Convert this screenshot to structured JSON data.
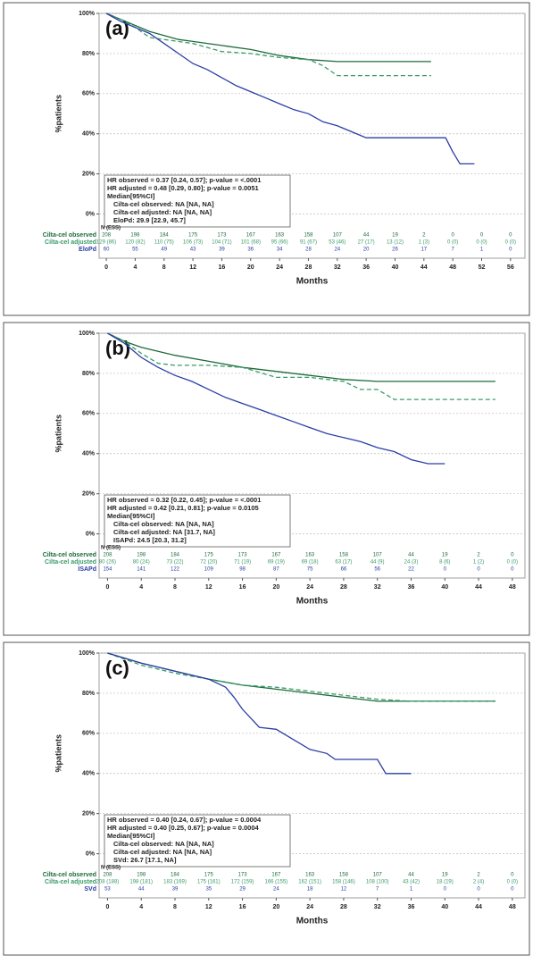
{
  "chart_data": [
    {
      "type": "line",
      "panel_label": "(a)",
      "ylabel": "%patients",
      "xlabel": "Months",
      "grid": true,
      "xlim": [
        -1,
        58
      ],
      "xticks": [
        0,
        4,
        8,
        12,
        16,
        20,
        24,
        28,
        32,
        36,
        40,
        44,
        48,
        52,
        56
      ],
      "ylim": [
        -22,
        100
      ],
      "yticks": [
        {
          "value": 100,
          "label": "100%"
        },
        {
          "value": 80,
          "label": "80%"
        },
        {
          "value": 60,
          "label": "60%"
        },
        {
          "value": 40,
          "label": "40%"
        },
        {
          "value": 20,
          "label": "20%"
        },
        {
          "value": 0,
          "label": "0%"
        }
      ],
      "series": [
        {
          "name": "Cilta-cel observed",
          "color": "#1e6b3a",
          "line_style": "solid",
          "x": [
            0,
            2,
            4,
            6,
            8,
            10,
            12,
            16,
            20,
            24,
            28,
            32,
            36,
            40,
            44,
            45
          ],
          "values": [
            100,
            97,
            94,
            91,
            89,
            87,
            86,
            84,
            82,
            79,
            77,
            76,
            76,
            76,
            76,
            76
          ]
        },
        {
          "name": "Cilta-cel adjusted",
          "color": "#3a9b6a",
          "line_style": "dashed",
          "x": [
            0,
            2,
            4,
            6,
            8,
            12,
            16,
            20,
            24,
            28,
            30,
            32,
            36,
            40,
            44,
            45
          ],
          "values": [
            100,
            97,
            93,
            88,
            87,
            85,
            81,
            80,
            78,
            77,
            74,
            69,
            69,
            69,
            69,
            69
          ]
        },
        {
          "name": "EloPd",
          "color": "#2a3ea5",
          "line_style": "solid",
          "x": [
            0,
            2,
            4,
            6,
            8,
            10,
            12,
            14,
            16,
            18,
            20,
            22,
            24,
            26,
            28,
            30,
            32,
            34,
            36,
            40,
            44,
            47,
            48,
            49,
            51
          ],
          "values": [
            100,
            96,
            93,
            90,
            85,
            80,
            75,
            72,
            68,
            64,
            61,
            58,
            55,
            52,
            50,
            46,
            44,
            41,
            38,
            38,
            38,
            38,
            31,
            25,
            25
          ]
        }
      ],
      "annotation": [
        "HR observed = 0.37 [0.24, 0.57]; p-value = <.0001",
        "HR adjusted = 0.48 [0.29, 0.80]; p-value = 0.0051",
        "Median[95%CI]",
        "Cilta-cel observed: NA [NA, NA]",
        "Cilta-cel adjusted: NA [NA, NA]",
        "EloPd: 29.9 [22.9, 45.7]"
      ],
      "risk_table": {
        "title": "N (ESS)",
        "rows": [
          {
            "name": "Cilta-cel observed",
            "values": [
              208,
              198,
              184,
              175,
              173,
              167,
              163,
              158,
              107,
              44,
              19,
              2,
              0,
              0,
              0
            ]
          },
          {
            "name": "Cilta-cel adjusted",
            "values": [
              "129 (86)",
              "120 (82)",
              "110 (75)",
              "106 (73)",
              "104 (71)",
              "101 (68)",
              "95 (66)",
              "91 (67)",
              "53 (46)",
              "27 (17)",
              "13 (12)",
              "1 (3)",
              "0 (0)",
              "0 (0)",
              "0 (0)"
            ]
          },
          {
            "name": "EloPd",
            "values": [
              60,
              55,
              49,
              43,
              39,
              36,
              34,
              28,
              24,
              20,
              26,
              17,
              7,
              1,
              0
            ]
          }
        ]
      }
    },
    {
      "type": "line",
      "panel_label": "(b)",
      "ylabel": "%patients",
      "xlabel": "Months",
      "grid": true,
      "xlim": [
        -1,
        49.5
      ],
      "xticks": [
        0,
        4,
        8,
        12,
        16,
        20,
        24,
        28,
        32,
        36,
        40,
        44,
        48
      ],
      "ylim": [
        -22,
        100
      ],
      "yticks": [
        {
          "value": 100,
          "label": "100%"
        },
        {
          "value": 80,
          "label": "80%"
        },
        {
          "value": 60,
          "label": "60%"
        },
        {
          "value": 40,
          "label": "40%"
        },
        {
          "value": 20,
          "label": "20%"
        },
        {
          "value": 0,
          "label": "0%"
        }
      ],
      "series": [
        {
          "name": "Cilta-cel observed",
          "color": "#1e6b3a",
          "line_style": "solid",
          "x": [
            0,
            2,
            4,
            8,
            12,
            16,
            20,
            24,
            28,
            32,
            36,
            40,
            44,
            46
          ],
          "values": [
            100,
            96,
            93,
            89,
            86,
            83,
            81,
            79,
            77,
            76,
            76,
            76,
            76,
            76
          ]
        },
        {
          "name": "Cilta-cel adjusted",
          "color": "#3a9b6a",
          "line_style": "dashed",
          "x": [
            0,
            2,
            4,
            6,
            8,
            12,
            16,
            20,
            24,
            28,
            30,
            32,
            34,
            40,
            44,
            46
          ],
          "values": [
            100,
            96,
            90,
            85,
            84,
            84,
            83,
            78,
            78,
            76,
            72,
            72,
            67,
            67,
            67,
            67
          ]
        },
        {
          "name": "ISAPd",
          "color": "#2a3ea5",
          "line_style": "solid",
          "x": [
            0,
            2,
            4,
            6,
            8,
            10,
            12,
            14,
            16,
            18,
            20,
            22,
            24,
            26,
            28,
            30,
            32,
            34,
            36,
            38,
            40
          ],
          "values": [
            100,
            95,
            88,
            83,
            79,
            76,
            72,
            68,
            65,
            62,
            59,
            56,
            53,
            50,
            48,
            46,
            43,
            41,
            37,
            35,
            35
          ]
        }
      ],
      "annotation": [
        "HR observed = 0.32 [0.22, 0.45]; p-value = <.0001",
        "HR adjusted = 0.42 [0.21, 0.81]; p-value = 0.0105",
        "Median[95%CI]",
        "Cilta-cel observed: NA [NA, NA]",
        "Cilta-cel adjusted: NA [31.7, NA]",
        "ISAPd: 24.5 [20.3, 31.2]"
      ],
      "risk_table": {
        "title": "N (ESS)",
        "rows": [
          {
            "name": "Cilta-cel observed",
            "values": [
              208,
              198,
              184,
              175,
              173,
              167,
              163,
              158,
              107,
              44,
              19,
              2,
              0
            ]
          },
          {
            "name": "Cilta-cel adjusted",
            "values": [
              "80 (26)",
              "80 (24)",
              "73 (22)",
              "72 (20)",
              "71 (19)",
              "69 (19)",
              "69 (18)",
              "63 (17)",
              "44 (9)",
              "24 (3)",
              "8 (6)",
              "1 (2)",
              "0 (0)"
            ]
          },
          {
            "name": "ISAPd",
            "values": [
              154,
              141,
              122,
              109,
              98,
              87,
              75,
              66,
              56,
              22,
              0,
              0,
              0
            ]
          }
        ]
      }
    },
    {
      "type": "line",
      "panel_label": "(c)",
      "ylabel": "%patients",
      "xlabel": "Months",
      "grid": true,
      "xlim": [
        -1,
        49.5
      ],
      "xticks": [
        0,
        4,
        8,
        12,
        16,
        20,
        24,
        28,
        32,
        36,
        40,
        44,
        48
      ],
      "ylim": [
        -22,
        100
      ],
      "yticks": [
        {
          "value": 100,
          "label": "100%"
        },
        {
          "value": 80,
          "label": "80%"
        },
        {
          "value": 60,
          "label": "60%"
        },
        {
          "value": 40,
          "label": "40%"
        },
        {
          "value": 20,
          "label": "20%"
        },
        {
          "value": 0,
          "label": "0%"
        }
      ],
      "series": [
        {
          "name": "Cilta-cel observed",
          "color": "#1e6b3a",
          "line_style": "solid",
          "x": [
            0,
            4,
            8,
            12,
            16,
            20,
            24,
            28,
            32,
            36,
            40,
            44,
            46
          ],
          "values": [
            100,
            95,
            91,
            87,
            84,
            82,
            80,
            78,
            76,
            76,
            76,
            76,
            76
          ]
        },
        {
          "name": "Cilta-cel adjusted",
          "color": "#3a9b6a",
          "line_style": "dashed",
          "x": [
            0,
            4,
            8,
            12,
            16,
            20,
            24,
            28,
            32,
            36,
            40,
            44,
            46
          ],
          "values": [
            100,
            94,
            90,
            87,
            84,
            83,
            81,
            79,
            77,
            76,
            76,
            76,
            76
          ]
        },
        {
          "name": "SVd",
          "color": "#2a3ea5",
          "line_style": "solid",
          "x": [
            0,
            4,
            8,
            12,
            14,
            15,
            16,
            18,
            20,
            22,
            24,
            26,
            27,
            30,
            32,
            33,
            36
          ],
          "values": [
            100,
            95,
            91,
            87,
            83,
            78,
            72,
            63,
            62,
            57,
            52,
            50,
            47,
            47,
            47,
            40,
            40
          ]
        }
      ],
      "annotation": [
        "HR observed = 0.40 [0.24, 0.67]; p-value = 0.0004",
        "HR adjusted = 0.40 [0.25, 0.67]; p-value = 0.0004",
        "Median[95%CI]",
        "Cilta-cel observed: NA [NA, NA]",
        "Cilta-cel adjusted: NA [NA, NA]",
        "SVd: 26.7 [17.1, NA]"
      ],
      "risk_table": {
        "title": "N (ESS)",
        "rows": [
          {
            "name": "Cilta-cel observed",
            "values": [
              208,
              198,
              184,
              175,
              173,
              167,
              163,
              158,
              107,
              44,
              19,
              2,
              0
            ]
          },
          {
            "name": "Cilta-cel adjusted",
            "values": [
              "208 (188)",
              "198 (181)",
              "183 (169)",
              "175 (161)",
              "172 (159)",
              "166 (155)",
              "162 (151)",
              "158 (146)",
              "108 (100)",
              "43 (42)",
              "18 (19)",
              "2 (4)",
              "0 (0)"
            ]
          },
          {
            "name": "SVd",
            "values": [
              53,
              44,
              39,
              35,
              29,
              24,
              18,
              12,
              7,
              1,
              0,
              0,
              0
            ]
          }
        ]
      }
    }
  ]
}
